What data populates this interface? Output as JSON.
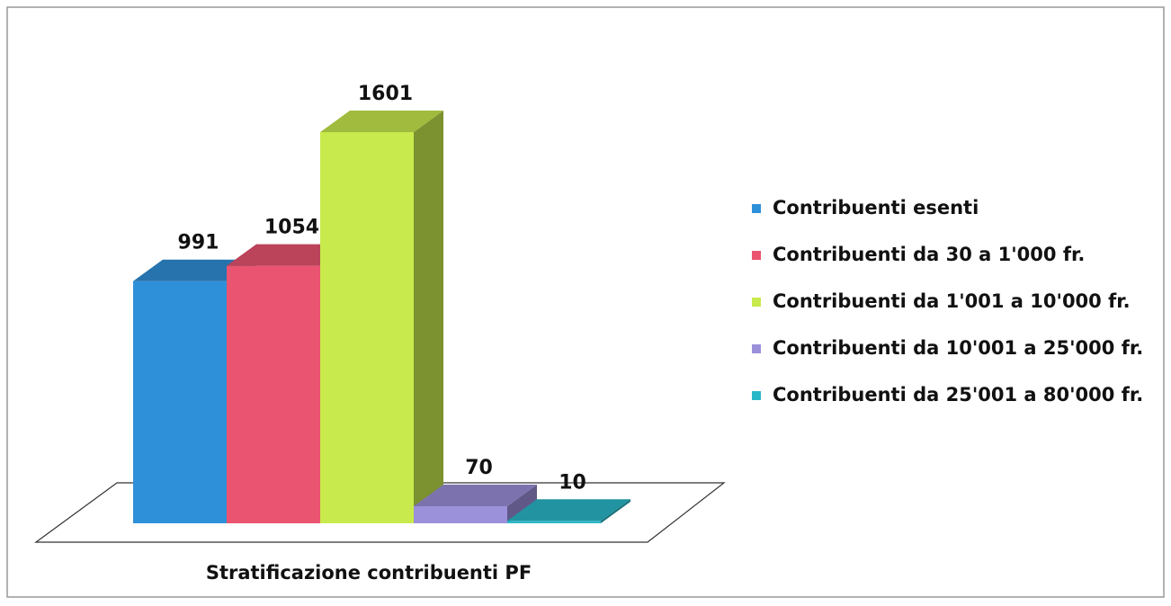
{
  "chart_data": {
    "type": "bar3d",
    "categories": [
      "Stratificazione contribuenti PF"
    ],
    "series": [
      {
        "name": "Contribuenti esenti",
        "color": "#2f90da",
        "values": [
          991
        ]
      },
      {
        "name": "Contribuenti da 30 a 1'000 fr.",
        "color": "#ea5470",
        "values": [
          1054
        ]
      },
      {
        "name": "Contribuenti da 1'001 a 10'000 fr.",
        "color": "#c8ea4c",
        "values": [
          1601
        ]
      },
      {
        "name": "Contribuenti da 10'001 a 25'000 fr.",
        "color": "#9b90da",
        "values": [
          70
        ]
      },
      {
        "name": "Contribuenti da 25'001 a 80'000 fr.",
        "color": "#2ab8c8",
        "values": [
          10
        ]
      }
    ],
    "legend": "right"
  }
}
